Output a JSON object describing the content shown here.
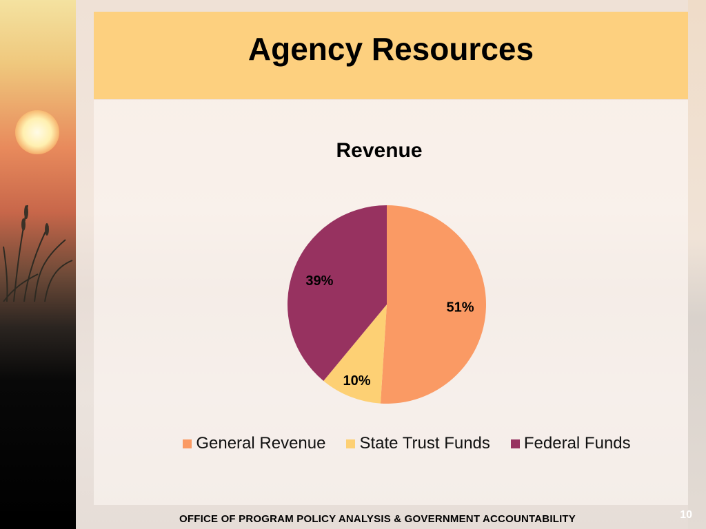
{
  "slide": {
    "title": "Agency Resources",
    "footer": "OFFICE OF PROGRAM POLICY ANALYSIS & GOVERNMENT ACCOUNTABILITY",
    "page_number": "10"
  },
  "chart_data": {
    "type": "pie",
    "title": "Revenue",
    "categories": [
      "General Revenue",
      "State Trust Funds",
      "Federal Funds"
    ],
    "values": [
      51,
      10,
      39
    ],
    "labels": [
      "51%",
      "10%",
      "39%"
    ],
    "colors": [
      "#fa9a64",
      "#fdd074",
      "#973260"
    ],
    "legend_position": "bottom"
  }
}
